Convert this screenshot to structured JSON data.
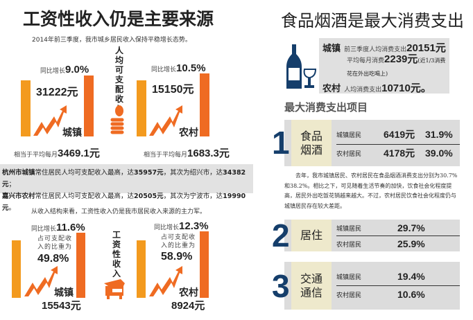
{
  "left": {
    "title": "工资性收入仍是主要来源",
    "intro": "2014年前三季度，我市城乡居民收入保持平稳增长态势。",
    "vertical_label_1": "人均可支配收入",
    "urban": {
      "growth_label": "同比增长",
      "growth": "9.0%",
      "income": "31222元",
      "name": "城镇",
      "monthly_label": "相当于平均每月",
      "monthly": "3469.1元"
    },
    "rural": {
      "growth_label": "同比增长",
      "growth": "10.5%",
      "income": "15150元",
      "name": "农村",
      "monthly_label": "相当于平均每月",
      "monthly": "1683.3元"
    },
    "band": [
      {
        "city": "杭州市城镇",
        "t1": "常住居民人均可支配收入最高，达",
        "v1": "35957元",
        "t2": "，其次为绍兴市，达",
        "v2": "34382元",
        "end": "；"
      },
      {
        "city": "嘉兴市农村",
        "t1": "常住居民人均可支配收入最高，达",
        "v1": "20505元",
        "t2": "，其次为宁波市，达",
        "v2": "19990元",
        "end": "。"
      }
    ],
    "intro2": "从收入结构来看，工资性收入仍是我市居民收入来源的主力军。",
    "vertical_label_2": "工资性收入",
    "urban2": {
      "growth_label": "同比增长",
      "growth": "11.6%",
      "share_label": "占可支配收入的比重为",
      "share": "49.8%",
      "name": "城镇",
      "income": "15543元"
    },
    "rural2": {
      "growth_label": "同比增长",
      "growth": "12.3%",
      "share_label": "占可支配收入的比重为",
      "share": "58.9%",
      "name": "农村",
      "income": "8924元"
    }
  },
  "right": {
    "title": "食品烟酒是最大消费支出",
    "urban_label": "城镇",
    "urban_t1": "前三季度人均消费支出",
    "urban_v1": "20151元",
    "urban_t2": "平均每月消费",
    "urban_v2": "2239元",
    "urban_note": "(近1/3消费花在外出吃喝上)",
    "rural_label": "农村",
    "rural_t": "人均消费支出",
    "rural_v": "10710元。",
    "heading": "最大消费支出项目",
    "paragraph": "去年，我市城镇居民、农村居民在食品烟酒消费支出分别为30.7%和38.2%。相比之下，可见随着生活节奏的加快，饮食社会化程度提高，居民外出吃饭花销越来越大。不过，农村居民饮食社会化程度仍与城镇居民存在较大差距。",
    "items": [
      {
        "num": "1",
        "cat": "食品烟酒",
        "rows": [
          {
            "who": "城镇居民",
            "amt": "6419元",
            "pct": "31.9%"
          },
          {
            "who": "农村居民",
            "amt": "4178元",
            "pct": "39.0%"
          }
        ]
      },
      {
        "num": "2",
        "cat": "居住",
        "rows": [
          {
            "who": "城镇居民",
            "pct": "29.7%"
          },
          {
            "who": "农村居民",
            "pct": "25.9%"
          }
        ]
      },
      {
        "num": "3",
        "cat": "交通通信",
        "rows": [
          {
            "who": "城镇居民",
            "pct": "19.4%"
          },
          {
            "who": "农村居民",
            "pct": "10.6%"
          }
        ]
      }
    ]
  },
  "colors": {
    "orange": "#f39a1e",
    "dark_orange": "#ef6b22",
    "navy": "#153e6b",
    "panel": "#dcdcdc",
    "cream": "#eee9cc"
  }
}
